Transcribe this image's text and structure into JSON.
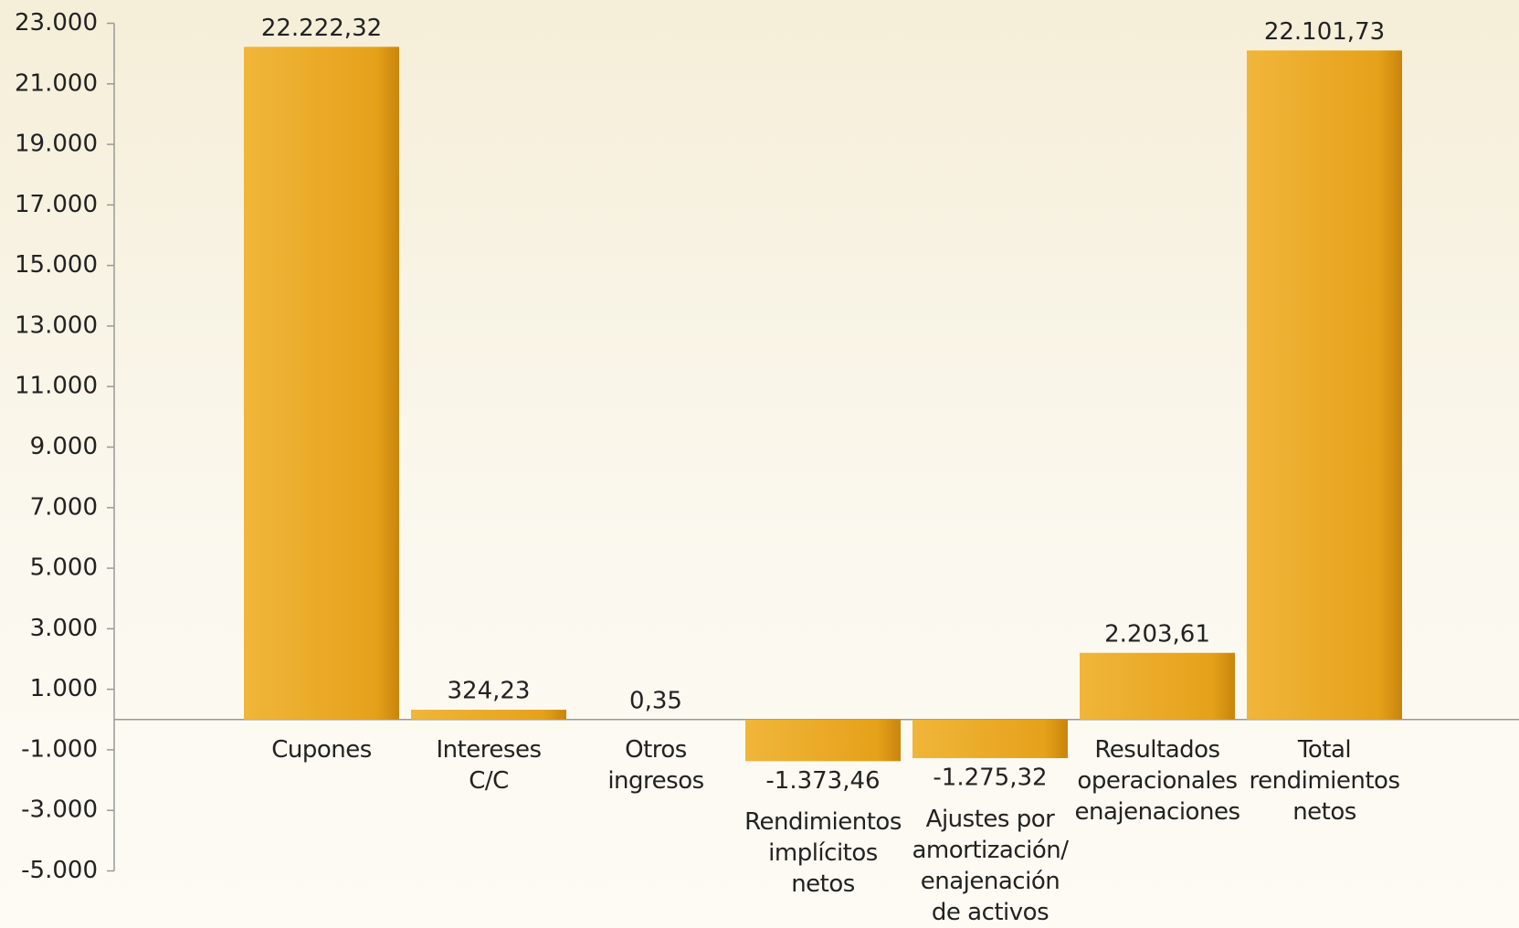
{
  "chart_data": {
    "type": "bar",
    "categories": [
      "Cupones",
      "Intereses\nC/C",
      "Otros\ningresos",
      "Rendimientos\nimplícitos\nnetos",
      "Ajustes por\namortización/\nenajenación\nde activos",
      "Resultados\noperacionales\nenajenaciones",
      "Total\nrendimientos\nnetos"
    ],
    "values": [
      22222.32,
      324.23,
      0.35,
      -1373.46,
      -1275.32,
      2203.61,
      22101.73
    ],
    "value_labels": [
      "22.222,32",
      "324,23",
      "0,35",
      "-1.373,46",
      "-1.275,32",
      "2.203,61",
      "22.101,73"
    ],
    "color": "#e8a51a",
    "ylim": [
      -5000,
      23000
    ],
    "yticks": [
      {
        "value": -5000,
        "label": "-5.000"
      },
      {
        "value": -3000,
        "label": "-3.000"
      },
      {
        "value": -1000,
        "label": "-1.000"
      },
      {
        "value": 1000,
        "label": "1.000"
      },
      {
        "value": 3000,
        "label": "3.000"
      },
      {
        "value": 5000,
        "label": "5.000"
      },
      {
        "value": 7000,
        "label": "7.000"
      },
      {
        "value": 9000,
        "label": "9.000"
      },
      {
        "value": 11000,
        "label": "11.000"
      },
      {
        "value": 13000,
        "label": "13.000"
      },
      {
        "value": 15000,
        "label": "15.000"
      },
      {
        "value": 17000,
        "label": "17.000"
      },
      {
        "value": 19000,
        "label": "19.000"
      },
      {
        "value": 21000,
        "label": "21.000"
      },
      {
        "value": 23000,
        "label": "23.000"
      }
    ],
    "grid": false
  }
}
